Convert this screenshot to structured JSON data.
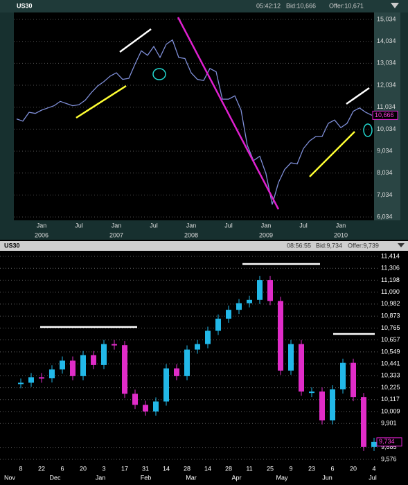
{
  "chart_data": [
    {
      "type": "line",
      "title": "US30",
      "time": "05:42:12",
      "bid": "Bid:10,666",
      "offer": "Offer:10,671",
      "x": [
        "2005-09",
        "2005-10",
        "2005-11",
        "2005-12",
        "2006-01",
        "2006-02",
        "2006-03",
        "2006-04",
        "2006-05",
        "2006-06",
        "2006-07",
        "2006-08",
        "2006-09",
        "2006-10",
        "2006-11",
        "2006-12",
        "2007-01",
        "2007-02",
        "2007-03",
        "2007-04",
        "2007-05",
        "2007-06",
        "2007-07",
        "2007-08",
        "2007-09",
        "2007-10",
        "2007-11",
        "2007-12",
        "2008-01",
        "2008-02",
        "2008-03",
        "2008-04",
        "2008-05",
        "2008-06",
        "2008-07",
        "2008-08",
        "2008-09",
        "2008-10",
        "2008-11",
        "2008-12",
        "2009-01",
        "2009-02",
        "2009-03",
        "2009-04",
        "2009-05",
        "2009-06",
        "2009-07",
        "2009-08",
        "2009-09",
        "2009-10",
        "2009-11",
        "2009-12",
        "2010-01",
        "2010-02",
        "2010-03",
        "2010-04",
        "2010-05",
        "2010-06"
      ],
      "values": [
        10500,
        10400,
        10800,
        10750,
        10900,
        11000,
        11100,
        11300,
        11200,
        11100,
        11150,
        11350,
        11700,
        12000,
        12200,
        12450,
        12600,
        12300,
        12350,
        13000,
        13600,
        13400,
        13800,
        13300,
        13900,
        14100,
        13300,
        13250,
        12600,
        12300,
        12250,
        12800,
        12650,
        11400,
        11400,
        11550,
        10900,
        9300,
        8600,
        8800,
        8000,
        6600,
        7600,
        8200,
        8500,
        8450,
        9150,
        9500,
        9700,
        9700,
        10300,
        10450,
        10100,
        10300,
        10850,
        11000,
        10800,
        10666
      ],
      "color": "#7f8fd8",
      "ylim": [
        5880,
        15350
      ],
      "yticks": [
        {
          "value": 6034,
          "label": "6,034"
        },
        {
          "value": 7034,
          "label": "7,034"
        },
        {
          "value": 8034,
          "label": "8,034"
        },
        {
          "value": 9034,
          "label": "9,034"
        },
        {
          "value": 10034,
          "label": "10,034"
        },
        {
          "value": 11034,
          "label": "11,034"
        },
        {
          "value": 12034,
          "label": "12,034"
        },
        {
          "value": 13034,
          "label": "13,034"
        },
        {
          "value": 14034,
          "label": "14,034"
        },
        {
          "value": 15034,
          "label": "15,034"
        }
      ],
      "xticks": [
        {
          "value": "2006-01",
          "label": "Jan"
        },
        {
          "value": "2006-07",
          "label": "Jul"
        },
        {
          "value": "2007-01",
          "label": "Jan"
        },
        {
          "value": "2007-07",
          "label": "Jul"
        },
        {
          "value": "2008-01",
          "label": "Jan"
        },
        {
          "value": "2008-07",
          "label": "Jul"
        },
        {
          "value": "2009-01",
          "label": "Jan"
        },
        {
          "value": "2009-07",
          "label": "Jul"
        },
        {
          "value": "2010-01",
          "label": "Jan"
        }
      ],
      "year_labels": [
        {
          "value": "2006-01",
          "label": "2006"
        },
        {
          "value": "2007-01",
          "label": "2007"
        },
        {
          "value": "2008-01",
          "label": "2008"
        },
        {
          "value": "2009-01",
          "label": "2009"
        },
        {
          "value": "2010-01",
          "label": "2010"
        }
      ],
      "last_value": 10666,
      "last_label": "10,666",
      "grid": true
    },
    {
      "type": "candlestick",
      "title": "US30",
      "time": "08:56:55",
      "bid": "Bid:9,734",
      "offer": "Offer:9,739",
      "categories": [
        "8",
        null,
        "22",
        null,
        "6",
        null,
        "20",
        null,
        "3",
        null,
        "17",
        null,
        "31",
        null,
        "14",
        null,
        "28",
        null,
        "14",
        null,
        "28",
        null,
        "11",
        null,
        "25",
        null,
        "9",
        null,
        "23",
        null,
        "6",
        null,
        "20",
        null,
        "4"
      ],
      "values": [
        10270,
        10320,
        10310,
        10390,
        10470,
        10330,
        10520,
        10430,
        10620,
        10610,
        10170,
        10070,
        10010,
        10100,
        10400,
        10330,
        10570,
        10620,
        10740,
        10850,
        10930,
        10990,
        11020,
        11200,
        11010,
        10380,
        10620,
        10190,
        10190,
        9930,
        10210,
        10450,
        10140,
        9690,
        9734
      ],
      "up_color": "#22b8e8",
      "down_color": "#e02cc8",
      "months": [
        "Nov",
        "Dec",
        "Jan",
        "Feb",
        "Mar",
        "Apr",
        "May",
        "Jun",
        "Jul"
      ],
      "ylim": [
        9545,
        11464
      ],
      "yticks": [
        {
          "value": 9576,
          "label": "9,576"
        },
        {
          "value": 9685,
          "label": "9,685"
        },
        {
          "value": 9901,
          "label": "9,901"
        },
        {
          "value": 10009,
          "label": "10,009"
        },
        {
          "value": 10117,
          "label": "10,117"
        },
        {
          "value": 10225,
          "label": "10,225"
        },
        {
          "value": 10333,
          "label": "10,333"
        },
        {
          "value": 10441,
          "label": "10,441"
        },
        {
          "value": 10549,
          "label": "10,549"
        },
        {
          "value": 10657,
          "label": "10,657"
        },
        {
          "value": 10765,
          "label": "10,765"
        },
        {
          "value": 10873,
          "label": "10,873"
        },
        {
          "value": 10982,
          "label": "10,982"
        },
        {
          "value": 11090,
          "label": "11,090"
        },
        {
          "value": 11198,
          "label": "11,198"
        },
        {
          "value": 11306,
          "label": "11,306"
        },
        {
          "value": 11414,
          "label": "11,414"
        }
      ],
      "last_value": 9734,
      "last_label": "9,734",
      "grid": true
    }
  ]
}
